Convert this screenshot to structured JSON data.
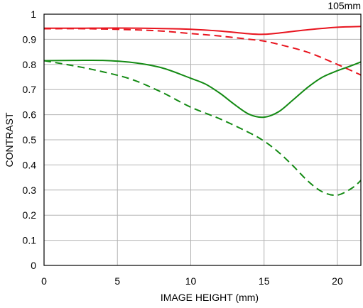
{
  "chart_data": {
    "type": "line",
    "title": "105mm",
    "xlabel": "IMAGE HEIGHT (mm)",
    "ylabel": "CONTRAST",
    "xlim": [
      0,
      21.6
    ],
    "ylim": [
      0,
      1
    ],
    "xticks": [
      0,
      5,
      10,
      15,
      20
    ],
    "yticks": [
      0,
      0.1,
      0.2,
      0.3,
      0.4,
      0.5,
      0.6,
      0.7,
      0.8,
      0.9,
      1
    ],
    "ytick_labels": [
      "0",
      "0.1",
      "0.2",
      "0.3",
      "0.4",
      "0.5",
      "0.6",
      "0.7",
      "0.8",
      "0.9",
      "1"
    ],
    "grid": true,
    "series": [
      {
        "color": "#e8141e",
        "style": "solid",
        "points": [
          [
            0,
            0.944
          ],
          [
            2,
            0.944
          ],
          [
            5,
            0.945
          ],
          [
            8,
            0.943
          ],
          [
            10,
            0.94
          ],
          [
            12,
            0.933
          ],
          [
            14,
            0.922
          ],
          [
            15,
            0.92
          ],
          [
            16,
            0.925
          ],
          [
            18,
            0.938
          ],
          [
            20,
            0.948
          ],
          [
            21.6,
            0.951
          ]
        ]
      },
      {
        "color": "#e8141e",
        "style": "dashed",
        "points": [
          [
            0,
            0.942
          ],
          [
            3,
            0.942
          ],
          [
            6,
            0.938
          ],
          [
            8,
            0.933
          ],
          [
            10,
            0.923
          ],
          [
            12,
            0.913
          ],
          [
            14,
            0.9
          ],
          [
            15,
            0.893
          ],
          [
            16,
            0.88
          ],
          [
            18,
            0.848
          ],
          [
            20,
            0.8
          ],
          [
            21.6,
            0.758
          ]
        ]
      },
      {
        "color": "#138a13",
        "style": "solid",
        "points": [
          [
            0,
            0.815
          ],
          [
            2,
            0.816
          ],
          [
            4,
            0.816
          ],
          [
            6,
            0.808
          ],
          [
            8,
            0.787
          ],
          [
            10,
            0.745
          ],
          [
            11,
            0.722
          ],
          [
            12,
            0.685
          ],
          [
            13,
            0.64
          ],
          [
            14,
            0.601
          ],
          [
            15,
            0.59
          ],
          [
            16,
            0.612
          ],
          [
            17,
            0.66
          ],
          [
            18,
            0.71
          ],
          [
            19,
            0.75
          ],
          [
            20,
            0.775
          ],
          [
            21,
            0.796
          ],
          [
            21.6,
            0.81
          ]
        ]
      },
      {
        "color": "#138a13",
        "style": "dashed",
        "points": [
          [
            0,
            0.815
          ],
          [
            2,
            0.795
          ],
          [
            4,
            0.771
          ],
          [
            6,
            0.74
          ],
          [
            8,
            0.69
          ],
          [
            10,
            0.63
          ],
          [
            12,
            0.583
          ],
          [
            14,
            0.528
          ],
          [
            15,
            0.495
          ],
          [
            16,
            0.45
          ],
          [
            17,
            0.395
          ],
          [
            18,
            0.335
          ],
          [
            19,
            0.292
          ],
          [
            20,
            0.28
          ],
          [
            21,
            0.308
          ],
          [
            21.6,
            0.338
          ]
        ]
      }
    ]
  }
}
